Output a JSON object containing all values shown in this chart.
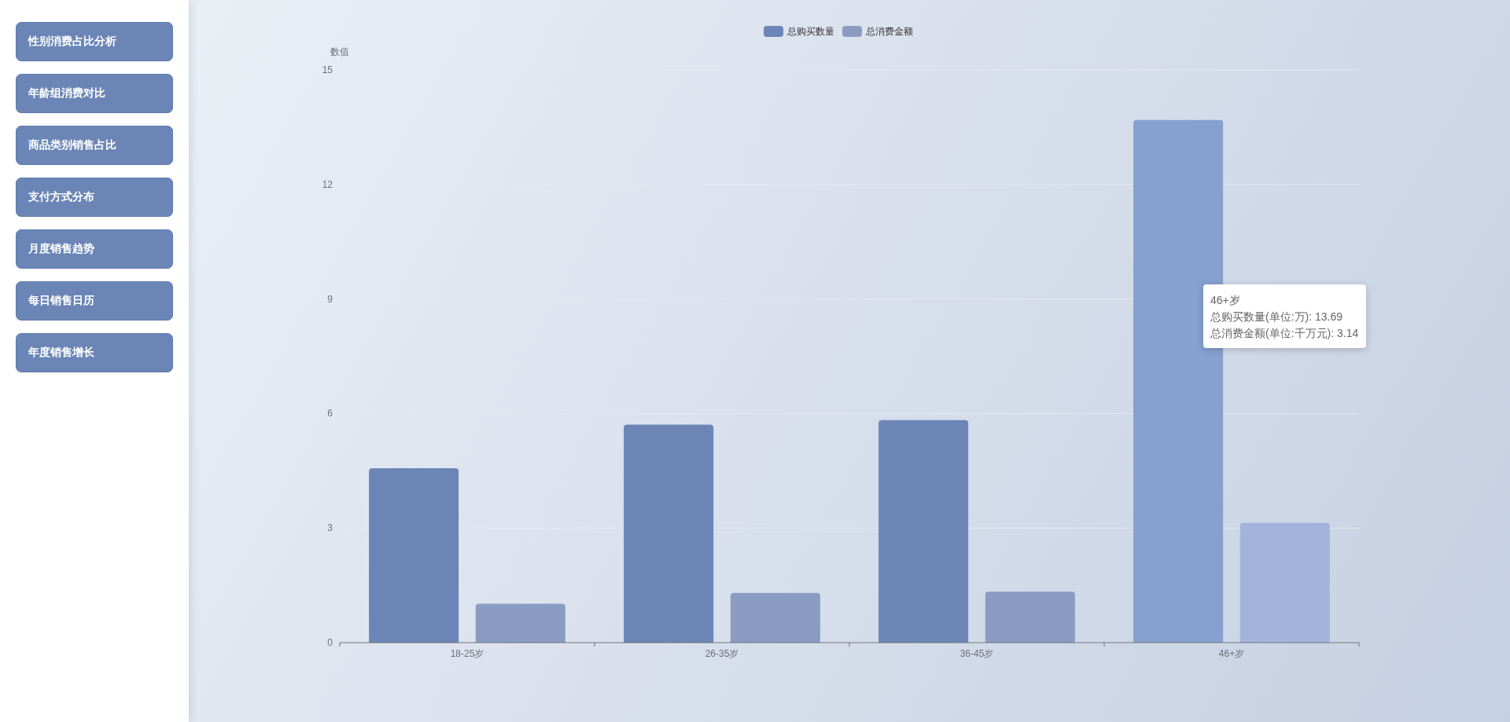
{
  "chart_data": [
    {
      "type": "other",
      "annotations": [
        "性别消费占比分析",
        "年龄组消费对比",
        "商品类别销售占比",
        "支付方式分布",
        "月度销售趋势",
        "每日销售日历",
        "年度销售增长"
      ]
    },
    {
      "type": "bar",
      "ylabel": "数值",
      "categories": [
        "18-25岁",
        "26-35岁",
        "36-45岁",
        "46+岁"
      ],
      "series": [
        {
          "name": "总购买数量",
          "color": "#6b86b6",
          "colors": [
            "#6b86b6",
            "#6b86b6",
            "#6b86b6",
            "#86a0cf"
          ],
          "values": [
            4.57,
            5.71,
            5.83,
            13.69
          ]
        },
        {
          "name": "总消费金额",
          "color": "#8a9cc2",
          "colors": [
            "#8a9cc2",
            "#8a9cc2",
            "#8a9cc2",
            "#a2b4dc"
          ],
          "values": [
            1.02,
            1.3,
            1.34,
            3.14
          ]
        }
      ],
      "ylim": [
        0,
        15
      ],
      "yticks": [
        0,
        3,
        6,
        9,
        12,
        15
      ],
      "grid": "y",
      "legend": "top",
      "annotations": [
        "46+岁",
        "总购买数量(单位:万): 13.69",
        "总消费金额(单位:千万元): 3.14"
      ]
    }
  ]
}
